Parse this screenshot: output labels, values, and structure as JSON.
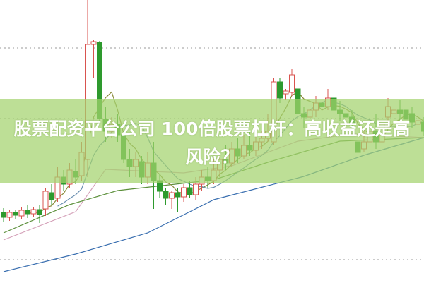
{
  "title": "股票配资平台公司 100倍股票杠杆：高收益还是高风险？",
  "colors": {
    "up": "#d9534f",
    "down": "#2e9a2e",
    "banner": "#a3d26e",
    "grid": "#999999"
  },
  "chart_data": {
    "type": "candlestick",
    "title": "",
    "xlabel": "",
    "ylabel": "",
    "ylim": [
      0,
      401
    ],
    "grid": true,
    "grid_levels": [
      333,
      233,
      33
    ],
    "candles": [
      [
        100,
        93,
        106,
        86
      ],
      [
        93,
        100,
        104,
        88
      ],
      [
        100,
        96,
        104,
        90
      ],
      [
        95,
        103,
        108,
        90
      ],
      [
        103,
        98,
        110,
        92
      ],
      [
        98,
        104,
        108,
        94
      ],
      [
        104,
        97,
        110,
        85
      ],
      [
        105,
        130,
        135,
        95
      ],
      [
        128,
        118,
        140,
        110
      ],
      [
        120,
        150,
        165,
        115
      ],
      [
        150,
        140,
        160,
        130
      ],
      [
        140,
        160,
        170,
        135
      ],
      [
        158,
        150,
        175,
        140
      ],
      [
        152,
        185,
        200,
        145
      ],
      [
        175,
        338,
        401,
        150
      ],
      [
        338,
        342,
        345,
        290
      ],
      [
        341,
        233,
        343,
        230
      ],
      [
        232,
        215,
        250,
        200
      ],
      [
        215,
        225,
        235,
        205
      ],
      [
        225,
        210,
        240,
        200
      ],
      [
        210,
        175,
        215,
        170
      ],
      [
        175,
        165,
        190,
        150
      ],
      [
        165,
        175,
        185,
        150
      ],
      [
        172,
        150,
        180,
        140
      ],
      [
        150,
        170,
        185,
        140
      ],
      [
        170,
        145,
        200,
        105
      ],
      [
        145,
        130,
        155,
        120
      ],
      [
        130,
        120,
        135,
        110
      ],
      [
        120,
        128,
        130,
        105
      ],
      [
        128,
        122,
        135,
        100
      ],
      [
        122,
        135,
        140,
        115
      ],
      [
        135,
        125,
        145,
        120
      ],
      [
        125,
        140,
        150,
        118
      ],
      [
        140,
        150,
        160,
        130
      ],
      [
        150,
        145,
        165,
        135
      ],
      [
        145,
        160,
        175,
        140
      ],
      [
        160,
        175,
        185,
        150
      ],
      [
        175,
        170,
        195,
        160
      ],
      [
        170,
        190,
        200,
        165
      ],
      [
        190,
        180,
        205,
        170
      ],
      [
        180,
        195,
        210,
        175
      ],
      [
        195,
        188,
        215,
        180
      ],
      [
        188,
        200,
        220,
        180
      ],
      [
        200,
        205,
        215,
        190
      ],
      [
        205,
        215,
        240,
        200
      ],
      [
        200,
        285,
        290,
        195
      ],
      [
        285,
        262,
        290,
        255
      ],
      [
        268,
        272,
        275,
        260
      ],
      [
        270,
        295,
        303,
        265
      ],
      [
        275,
        240,
        278,
        200
      ],
      [
        240,
        235,
        250,
        220
      ],
      [
        235,
        245,
        255,
        225
      ],
      [
        245,
        255,
        265,
        235
      ],
      [
        255,
        250,
        270,
        240
      ],
      [
        250,
        262,
        275,
        245
      ],
      [
        262,
        245,
        268,
        235
      ],
      [
        245,
        240,
        258,
        230
      ],
      [
        240,
        235,
        255,
        225
      ],
      [
        235,
        225,
        245,
        215
      ],
      [
        200,
        185,
        220,
        180
      ],
      [
        190,
        200,
        215,
        185
      ],
      [
        200,
        215,
        235,
        195
      ],
      [
        215,
        200,
        240,
        190
      ],
      [
        200,
        225,
        255,
        195
      ],
      [
        235,
        250,
        262,
        220
      ],
      [
        240,
        245,
        265,
        225
      ],
      [
        245,
        240,
        260,
        230
      ],
      [
        245,
        232,
        255,
        225
      ],
      [
        240,
        228,
        250,
        220
      ],
      [
        225,
        230,
        245,
        218
      ],
      [
        228,
        215,
        235,
        208
      ]
    ],
    "moving_averages": [
      {
        "period": 5,
        "color": "#8a8a3a"
      },
      {
        "period": 10,
        "color": "#6a8fb0"
      }
    ],
    "lines": [
      {
        "color": "#d4a0b8",
        "points": [
          [
            0,
            61
          ],
          [
            12,
            101
          ],
          [
            17,
            161
          ],
          [
            30,
            156
          ],
          [
            38,
            166
          ],
          [
            49,
            201
          ],
          [
            58,
            211
          ],
          [
            70,
            206
          ]
        ]
      },
      {
        "color": "#5b8f3a",
        "points": [
          [
            0,
            71
          ],
          [
            11,
            111
          ],
          [
            19,
            131
          ],
          [
            35,
            146
          ],
          [
            44,
            171
          ],
          [
            56,
            201
          ],
          [
            70,
            206
          ]
        ]
      },
      {
        "color": "#3a6fb0",
        "points": [
          [
            0,
            16
          ],
          [
            12,
            41
          ],
          [
            24,
            71
          ],
          [
            35,
            118
          ],
          [
            50,
            151
          ],
          [
            60,
            181
          ],
          [
            70,
            206
          ]
        ]
      }
    ]
  }
}
